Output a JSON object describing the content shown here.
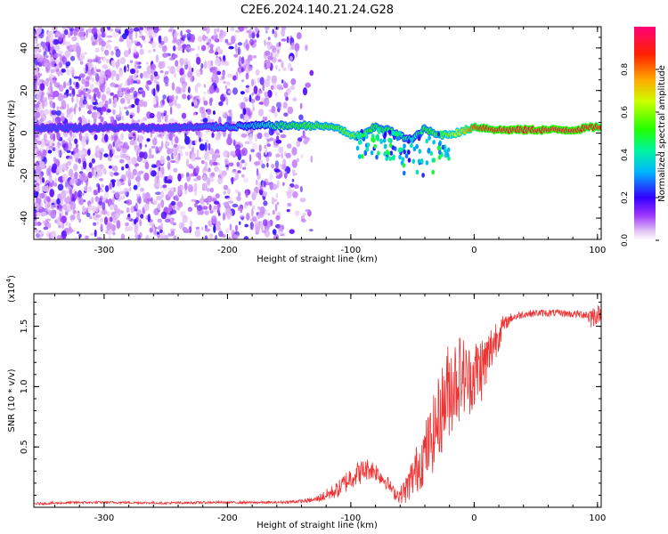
{
  "title": "C2E6.2024.140.21.24.G28",
  "chart_data": [
    {
      "type": "heatmap",
      "xlabel": "Height of straight line (km)",
      "ylabel": "Frequency (Hz)",
      "xlim": [
        -357,
        103
      ],
      "ylim": [
        -50,
        50
      ],
      "x_ticks": [
        -300,
        -200,
        -100,
        0,
        100
      ],
      "x_tick_labels": [
        "-300",
        "-200",
        "-100",
        "0",
        "100"
      ],
      "y_ticks": [
        -40,
        -20,
        0,
        20,
        40
      ],
      "y_tick_labels": [
        "-40",
        "-20",
        "0",
        "20",
        "40"
      ],
      "colorbar": {
        "label": "Normalized spectral amplitude",
        "range": [
          0,
          1
        ],
        "ticks": [
          0.0,
          0.2,
          0.4,
          0.6,
          0.8
        ],
        "tick_labels": [
          "0.0",
          "0.2",
          "0.4",
          "0.6",
          "0.8"
        ]
      },
      "ridge": {
        "x": [
          -357,
          -300,
          -250,
          -200,
          -170,
          -150,
          -130,
          -110,
          -100,
          -90,
          -80,
          -70,
          -60,
          -50,
          -40,
          -30,
          -20,
          -10,
          0,
          20,
          40,
          60,
          80,
          100
        ],
        "freq": [
          2.5,
          2.5,
          2.5,
          3.0,
          3.5,
          3.5,
          3.5,
          2.5,
          -1.5,
          -1.0,
          3.0,
          1.5,
          -1.5,
          -3.0,
          2.0,
          -1.0,
          -0.5,
          0.5,
          3.0,
          1.5,
          1.5,
          1.5,
          1.5,
          3.0
        ],
        "amplitude": [
          0.25,
          0.25,
          0.25,
          0.3,
          0.4,
          0.5,
          0.55,
          0.55,
          0.6,
          0.55,
          0.5,
          0.5,
          0.45,
          0.4,
          0.5,
          0.55,
          0.6,
          0.7,
          0.85,
          0.95,
          0.95,
          0.95,
          0.95,
          0.9
        ]
      }
    },
    {
      "type": "line",
      "xlabel": "Height of straight line (km)",
      "ylabel": "SNR (10 * v/v)",
      "exponent_label": "(x10",
      "exponent_power": "4",
      "exponent_close": ")",
      "xlim": [
        -357,
        103
      ],
      "ylim": [
        0,
        1.77
      ],
      "x_ticks": [
        -300,
        -200,
        -100,
        0,
        100
      ],
      "x_tick_labels": [
        "-300",
        "-200",
        "-100",
        "0",
        "100"
      ],
      "y_ticks": [
        0.5,
        1.0,
        1.5
      ],
      "y_tick_labels": [
        "0.5",
        "1.0",
        "1.5"
      ],
      "color": "#ee3333",
      "series": [
        {
          "name": "SNR",
          "x": [
            -357,
            -320,
            -300,
            -280,
            -250,
            -220,
            -200,
            -180,
            -160,
            -140,
            -130,
            -120,
            -110,
            -105,
            -100,
            -95,
            -90,
            -85,
            -80,
            -75,
            -70,
            -65,
            -60,
            -55,
            -50,
            -45,
            -40,
            -35,
            -30,
            -25,
            -20,
            -15,
            -10,
            -5,
            0,
            5,
            10,
            15,
            20,
            25,
            30,
            40,
            50,
            60,
            70,
            80,
            90,
            95,
            100,
            103
          ],
          "values": [
            0.03,
            0.04,
            0.04,
            0.04,
            0.035,
            0.04,
            0.04,
            0.04,
            0.04,
            0.05,
            0.06,
            0.1,
            0.15,
            0.2,
            0.25,
            0.28,
            0.3,
            0.32,
            0.3,
            0.25,
            0.2,
            0.12,
            0.1,
            0.15,
            0.25,
            0.35,
            0.45,
            0.55,
            0.7,
            0.85,
            1.0,
            1.05,
            1.1,
            1.05,
            1.1,
            1.15,
            1.2,
            1.35,
            1.45,
            1.52,
            1.57,
            1.6,
            1.61,
            1.61,
            1.61,
            1.6,
            1.6,
            1.58,
            1.6,
            1.6
          ],
          "noise": [
            0.01,
            0.01,
            0.01,
            0.01,
            0.01,
            0.01,
            0.01,
            0.01,
            0.01,
            0.015,
            0.02,
            0.05,
            0.07,
            0.09,
            0.1,
            0.1,
            0.1,
            0.09,
            0.08,
            0.07,
            0.06,
            0.05,
            0.07,
            0.12,
            0.18,
            0.22,
            0.26,
            0.3,
            0.35,
            0.38,
            0.42,
            0.4,
            0.35,
            0.3,
            0.3,
            0.3,
            0.25,
            0.2,
            0.15,
            0.06,
            0.04,
            0.03,
            0.03,
            0.03,
            0.03,
            0.03,
            0.04,
            0.1,
            0.08,
            0.05
          ]
        }
      ]
    }
  ]
}
